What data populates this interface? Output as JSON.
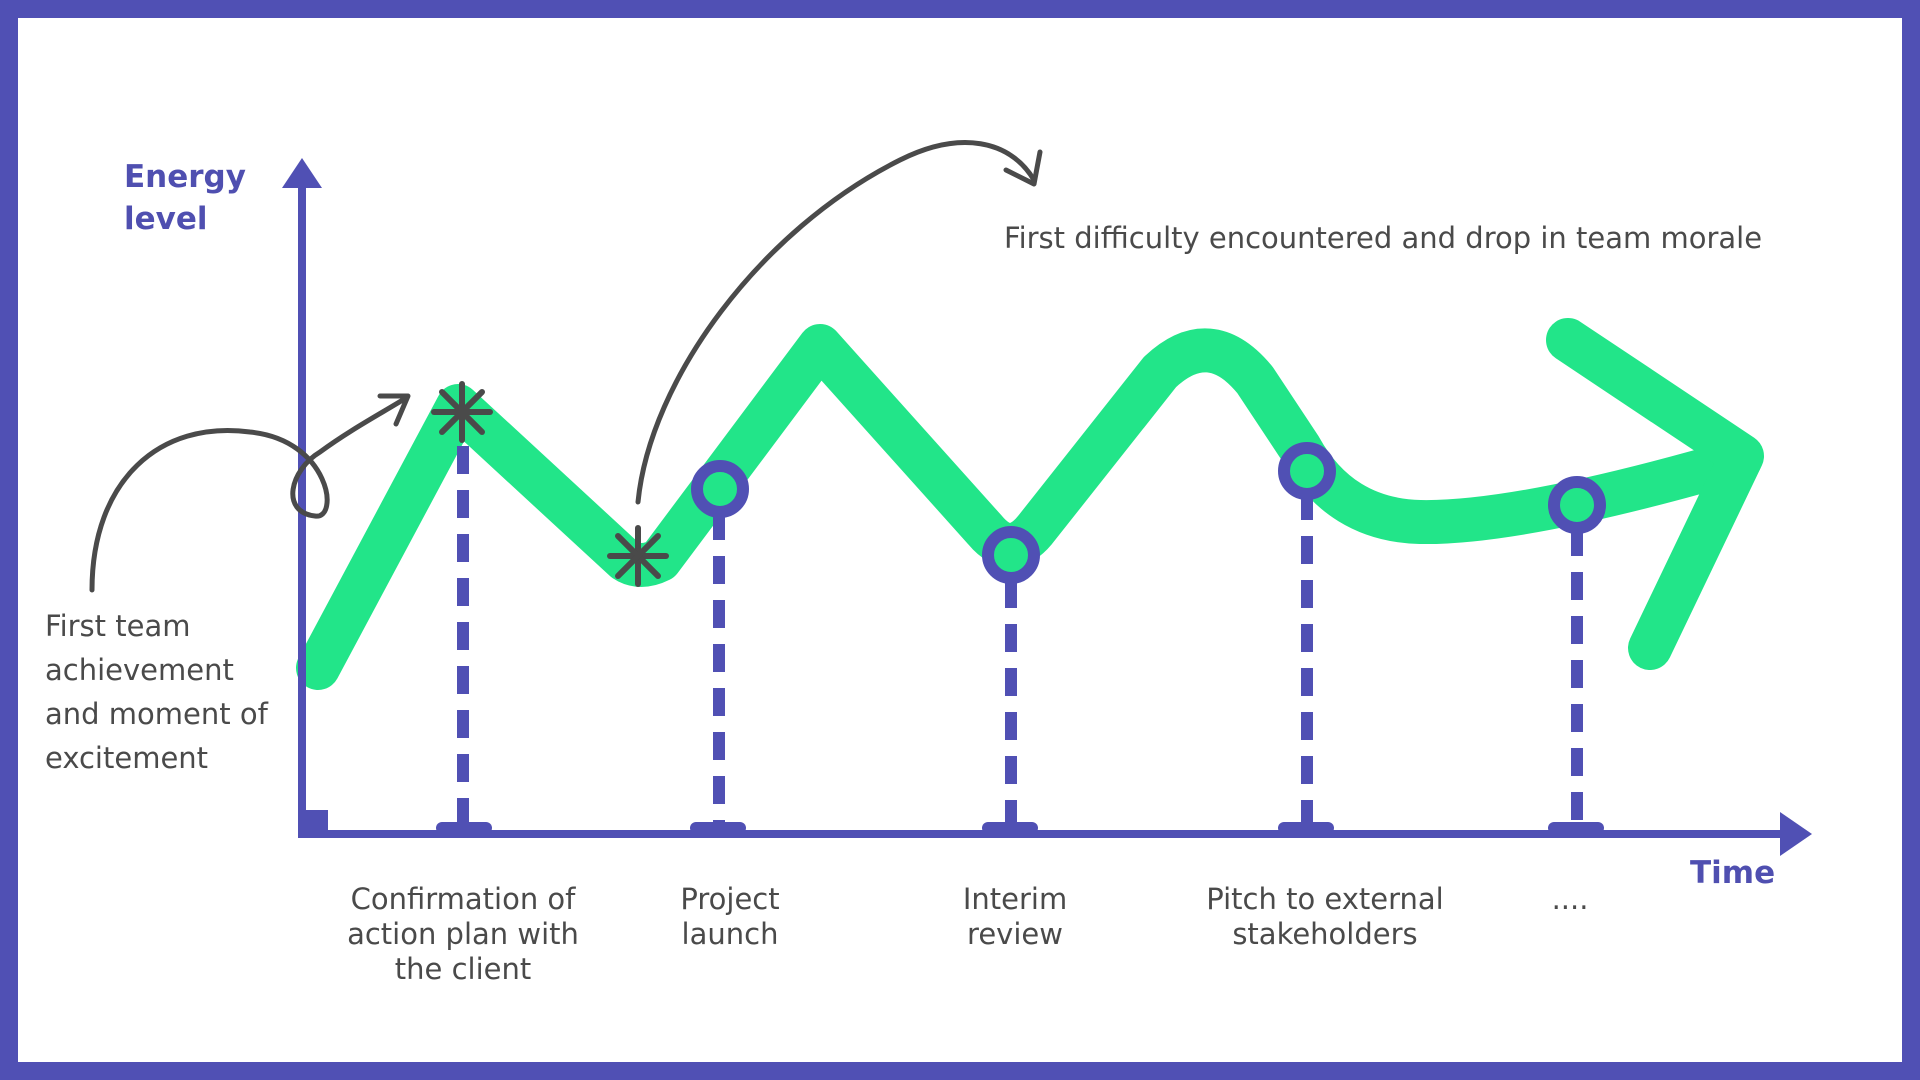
{
  "colors": {
    "frame": "#5050b4",
    "axis": "#5050b4",
    "energy_line": "#22e589",
    "annotation": "#4a4a4a"
  },
  "axes": {
    "y_label": "Energy\nlevel",
    "x_label": "Time"
  },
  "annotations": {
    "left_note": "First team achievement and moment of excitement",
    "top_note": "First difficulty encountered and drop in team morale"
  },
  "milestones": [
    {
      "label": "Confirmation of action plan with the client",
      "marker": "asterisk-icon"
    },
    {
      "label": "Project launch",
      "marker": "circle-icon"
    },
    {
      "label": "Interim review",
      "marker": "circle-icon"
    },
    {
      "label": "Pitch to external stakeholders",
      "marker": "circle-icon"
    },
    {
      "label": "....",
      "marker": "circle-icon"
    }
  ]
}
